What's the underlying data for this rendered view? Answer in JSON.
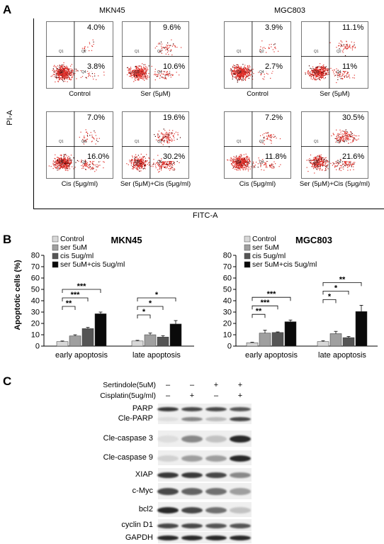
{
  "panel_labels": {
    "a": "A",
    "b": "B",
    "c": "C"
  },
  "panelA": {
    "left_title": "MKN45",
    "right_title": "MGC803",
    "y_axis_label": "PI-A",
    "x_axis_label": "FITC-A",
    "quadrant_names": [
      "Q1",
      "Q2",
      "Q3",
      "Q4"
    ],
    "plots": [
      {
        "label": "Control",
        "upper_right": "4.0%",
        "lower_right": "3.8%"
      },
      {
        "label": "Ser (5μM)",
        "upper_right": "9.6%",
        "lower_right": "10.6%"
      },
      {
        "label": "Control",
        "upper_right": "3.9%",
        "lower_right": "2.7%"
      },
      {
        "label": "Ser (5μM)",
        "upper_right": "11.1%",
        "lower_right": "11%"
      },
      {
        "label": "Cis (5μg/ml)",
        "upper_right": "7.0%",
        "lower_right": "16.0%"
      },
      {
        "label": "Ser (5μM)+Cis (5μg/ml)",
        "upper_right": "19.6%",
        "lower_right": "30.2%"
      },
      {
        "label": "Cis (5μg/ml)",
        "upper_right": "7.2%",
        "lower_right": "11.8%"
      },
      {
        "label": "Ser (5μM)+Cis (5μg/ml)",
        "upper_right": "30.5%",
        "lower_right": "21.6%"
      }
    ]
  },
  "chart_data": [
    {
      "type": "bar",
      "title": "MKN45",
      "ylabel": "Apoptotic cells (%)",
      "ylim": [
        0,
        80
      ],
      "yticks": [
        "0",
        "10",
        "20",
        "30",
        "40",
        "50",
        "60",
        "70",
        "80"
      ],
      "categories": [
        "early apoptosis",
        "late apoptosis"
      ],
      "legend_position": "top-left",
      "series": [
        {
          "name": "Control",
          "values": [
            4,
            4.5
          ],
          "errors": [
            0.5,
            0.6
          ],
          "color": "#d8d8d8"
        },
        {
          "name": "ser 5uM",
          "values": [
            9,
            10
          ],
          "errors": [
            1.0,
            1.5
          ],
          "color": "#a0a0a0"
        },
        {
          "name": "cis 5ug/ml",
          "values": [
            15.5,
            8
          ],
          "errors": [
            1.0,
            1.2
          ],
          "color": "#555555"
        },
        {
          "name": "ser 5uM+cis 5ug/ml",
          "values": [
            28.5,
            19.5
          ],
          "errors": [
            1.5,
            3.0
          ],
          "color": "#0a0a0a"
        }
      ],
      "significance": [
        {
          "cat": 0,
          "from": 0,
          "to": 1,
          "label": "**"
        },
        {
          "cat": 0,
          "from": 0,
          "to": 2,
          "label": "***"
        },
        {
          "cat": 0,
          "from": 0,
          "to": 3,
          "label": "***"
        },
        {
          "cat": 1,
          "from": 0,
          "to": 1,
          "label": "*"
        },
        {
          "cat": 1,
          "from": 0,
          "to": 2,
          "label": "*"
        },
        {
          "cat": 1,
          "from": 0,
          "to": 3,
          "label": "*"
        }
      ]
    },
    {
      "type": "bar",
      "title": "MGC803",
      "ylabel": "",
      "ylim": [
        0,
        80
      ],
      "yticks": [
        "0",
        "10",
        "20",
        "30",
        "40",
        "50",
        "60",
        "70",
        "80"
      ],
      "categories": [
        "early apoptosis",
        "late apoptosis"
      ],
      "legend_position": "top-left",
      "series": [
        {
          "name": "Control",
          "values": [
            3,
            4
          ],
          "errors": [
            0.4,
            0.8
          ],
          "color": "#d8d8d8"
        },
        {
          "name": "ser 5uM",
          "values": [
            11.5,
            11
          ],
          "errors": [
            2.5,
            2.0
          ],
          "color": "#a0a0a0"
        },
        {
          "name": "cis 5ug/ml",
          "values": [
            12,
            7.5
          ],
          "errors": [
            0.5,
            1.0
          ],
          "color": "#555555"
        },
        {
          "name": "ser 5uM+cis 5ug/ml",
          "values": [
            21.5,
            30.5
          ],
          "errors": [
            1.5,
            5.5
          ],
          "color": "#0a0a0a"
        }
      ],
      "significance": [
        {
          "cat": 0,
          "from": 0,
          "to": 1,
          "label": "**"
        },
        {
          "cat": 0,
          "from": 0,
          "to": 2,
          "label": "***"
        },
        {
          "cat": 0,
          "from": 0,
          "to": 3,
          "label": "***"
        },
        {
          "cat": 1,
          "from": 0,
          "to": 1,
          "label": "*"
        },
        {
          "cat": 1,
          "from": 0,
          "to": 2,
          "label": "*"
        },
        {
          "cat": 1,
          "from": 0,
          "to": 3,
          "label": "**"
        }
      ]
    }
  ],
  "panelC": {
    "conditions": [
      {
        "label": "Sertindole(5uM)",
        "marks": [
          "–",
          "–",
          "+",
          "+"
        ]
      },
      {
        "label": "Cisplatin(5ug/ml)",
        "marks": [
          "–",
          "+",
          "–",
          "+"
        ]
      }
    ],
    "proteins": [
      {
        "label": "PARP",
        "intensity": [
          0.9,
          0.85,
          0.85,
          0.8
        ]
      },
      {
        "label": "Cle-PARP",
        "intensity": [
          0.1,
          0.6,
          0.35,
          0.85
        ]
      },
      {
        "label": "Cle-caspase 3",
        "intensity": [
          0.1,
          0.6,
          0.3,
          0.95
        ]
      },
      {
        "label": "Cle-caspase 9",
        "intensity": [
          0.2,
          0.5,
          0.5,
          0.95
        ]
      },
      {
        "label": "XIAP",
        "intensity": [
          0.9,
          0.9,
          0.85,
          0.6
        ]
      },
      {
        "label": "c-Myc",
        "intensity": [
          0.85,
          0.75,
          0.7,
          0.5
        ]
      },
      {
        "label": "bcl2",
        "intensity": [
          0.95,
          0.85,
          0.7,
          0.3
        ]
      },
      {
        "label": "cyclin D1",
        "intensity": [
          0.85,
          0.85,
          0.8,
          0.8
        ]
      },
      {
        "label": "GAPDH",
        "intensity": [
          0.95,
          0.95,
          0.95,
          0.95
        ]
      }
    ]
  }
}
